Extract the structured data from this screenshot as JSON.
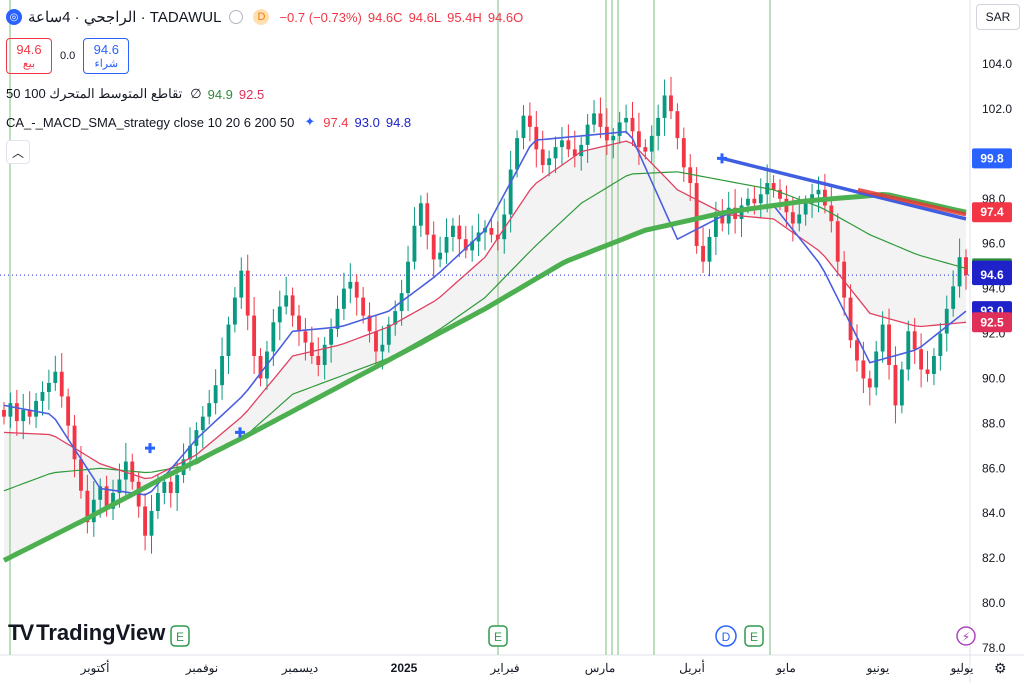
{
  "header": {
    "symbol_icon": "symbol-logo-icon",
    "title": "الراجحي · 4ساعة · TADAWUL",
    "d_badge": "D",
    "change": "−0.7 (−0.73%)",
    "open": "94.6O",
    "high": "95.4H",
    "low": "94.6L",
    "close": "94.6C"
  },
  "trade": {
    "sell_price": "94.6",
    "sell_label": "بيع",
    "spread": "0.0",
    "buy_price": "94.6",
    "buy_label": "شراء"
  },
  "indicators": {
    "ma_cross_name": "50 100 تقاطع المتوسط المتحرك",
    "ma_cross_icon": "∅",
    "ma_cross_v1": "94.9",
    "ma_cross_v2": "92.5",
    "strategy_name": "CA_-_MACD_SMA_strategy close 10 20 6 200 50",
    "strategy_icon": "sparkle-icon",
    "strategy_v1": "97.4",
    "strategy_v2": "93.0",
    "strategy_v3": "94.8",
    "collapse_icon": "chevron-up-icon"
  },
  "currency": "SAR",
  "logo_text": "TradingView",
  "settings_icon": "gear-icon",
  "colors": {
    "up": "#089981",
    "down": "#f23645",
    "sma200": "#4caf50",
    "blue": "#4a5fe0",
    "ema_red": "#e04060",
    "ema_green": "#2f9a3a",
    "event_line": "#a5d6a7"
  },
  "chart_data": {
    "type": "candlestick",
    "y_ticks": [
      "104.0",
      "102.0",
      "100.0",
      "98.0",
      "96.0",
      "94.0",
      "92.0",
      "90.0",
      "88.0",
      "86.0",
      "84.0",
      "82.0",
      "80.0",
      "78.0"
    ],
    "ylim": [
      78.0,
      104.0
    ],
    "x_ticks": [
      "أكتوبر",
      "نوفمبر",
      "ديسمبر",
      "2025",
      "فبراير",
      "مارس",
      "أبريل",
      "مايو",
      "يونيو",
      "يوليو"
    ],
    "price_labels": [
      {
        "value": "99.8",
        "price": 99.8,
        "color": "#2962ff"
      },
      {
        "value": "97.4",
        "price": 97.4,
        "color": "#f23645"
      },
      {
        "value": "94.9",
        "price": 94.9,
        "color": "#2e8b3a"
      },
      {
        "value": "94.8",
        "price": 94.8,
        "color": "#1e22c8"
      },
      {
        "value": "94.6",
        "price": 94.6,
        "color": "#1e22c8"
      },
      {
        "value": "93.0",
        "price": 93.0,
        "color": "#1e22c8"
      },
      {
        "value": "92.5",
        "price": 92.5,
        "color": "#e0305a"
      }
    ],
    "last_price": 94.6,
    "event_markers": [
      "E",
      "E",
      "D",
      "E",
      "E"
    ],
    "closes": [
      88.3,
      88.9,
      88.1,
      88.6,
      88.3,
      89.0,
      89.4,
      89.8,
      90.3,
      89.2,
      87.9,
      86.4,
      85.0,
      83.6,
      84.6,
      85.2,
      84.2,
      84.9,
      85.5,
      86.3,
      85.4,
      84.3,
      83.0,
      84.1,
      84.9,
      85.4,
      84.9,
      85.7,
      86.4,
      87.0,
      87.7,
      88.3,
      88.9,
      89.7,
      91.0,
      92.4,
      93.6,
      94.8,
      92.8,
      91.0,
      90.0,
      91.2,
      92.5,
      93.2,
      93.7,
      92.8,
      92.1,
      91.6,
      91.0,
      90.6,
      91.5,
      92.2,
      93.1,
      94.0,
      94.3,
      93.6,
      92.8,
      92.1,
      91.2,
      91.5,
      92.4,
      93.0,
      93.8,
      95.2,
      96.8,
      97.8,
      96.4,
      95.3,
      95.6,
      96.3,
      96.8,
      96.2,
      95.7,
      96.1,
      96.5,
      96.7,
      96.4,
      96.2,
      97.3,
      99.3,
      100.7,
      101.7,
      101.2,
      100.2,
      99.5,
      99.8,
      100.3,
      100.6,
      100.2,
      99.9,
      100.4,
      101.3,
      101.8,
      101.2,
      100.6,
      100.8,
      101.4,
      101.6,
      101.0,
      100.3,
      100.1,
      100.8,
      101.6,
      102.6,
      101.9,
      100.7,
      99.4,
      98.7,
      95.9,
      95.2,
      96.3,
      97.4,
      96.9,
      97.6,
      97.1,
      97.7,
      98.0,
      97.8,
      98.2,
      98.7,
      98.4,
      98.0,
      97.4,
      96.9,
      97.3,
      97.8,
      98.2,
      98.4,
      97.7,
      97.0,
      95.2,
      93.6,
      91.7,
      90.8,
      90.0,
      89.6,
      91.2,
      92.4,
      90.6,
      88.8,
      90.4,
      92.1,
      91.3,
      90.4,
      90.2,
      91.0,
      92.0,
      93.1,
      94.1,
      95.4,
      94.6
    ],
    "series": [
      {
        "name": "",
        "role": "sma200",
        "start": 94.5,
        "end": 97.4,
        "samples": [
          81.9,
          83.7,
          85.6,
          87.4,
          89.3,
          91.2,
          93.1,
          95.2,
          96.6,
          97.4,
          97.9,
          98.2,
          97.4
        ]
      },
      {
        "name": "",
        "role": "ema-fast",
        "samples": [
          88.8,
          88.4,
          85.1,
          84.8,
          87.3,
          89.3,
          92.1,
          92.3,
          93.0,
          94.6,
          96.6,
          100.6,
          100.8,
          101.0,
          96.2,
          97.3,
          97.7,
          95.0,
          90.7,
          91.3,
          93.0
        ]
      },
      {
        "name": "",
        "role": "ema-slow",
        "samples": [
          87.6,
          87.5,
          86.2,
          85.5,
          86.6,
          88.4,
          91.0,
          91.5,
          92.3,
          93.5,
          95.4,
          98.6,
          100.1,
          100.6,
          98.4,
          97.3,
          97.1,
          95.6,
          92.9,
          92.3,
          92.5
        ]
      },
      {
        "name": "",
        "role": "sma-long",
        "samples": [
          85.0,
          85.8,
          86.0,
          85.8,
          86.2,
          87.4,
          89.3,
          90.1,
          90.9,
          92.1,
          93.6,
          95.8,
          97.8,
          99.1,
          99.2,
          98.8,
          98.4,
          97.6,
          96.4,
          95.5,
          94.9
        ]
      }
    ]
  }
}
